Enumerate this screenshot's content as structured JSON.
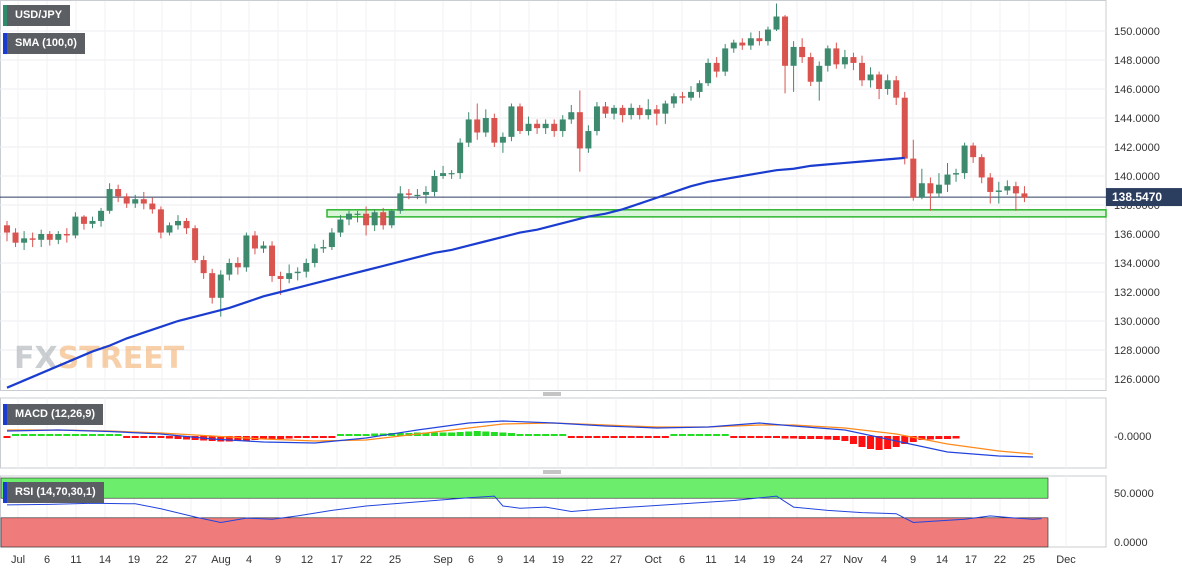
{
  "chart_data": {
    "type": "candlestick",
    "symbol": "USD/JPY",
    "sma_label": "SMA (100,0)",
    "macd_label": "MACD (12,26,9)",
    "rsi_label": "RSI (14,70,30,1)",
    "last_price": "138.5470",
    "watermark": {
      "fx": "FX",
      "street": "STREET"
    },
    "y_ticks": [
      "150.0000",
      "148.0000",
      "146.0000",
      "144.0000",
      "142.0000",
      "140.0000",
      "138.0000",
      "136.0000",
      "134.0000",
      "132.0000",
      "130.0000",
      "128.0000",
      "126.0000"
    ],
    "ylim": [
      125,
      152
    ],
    "macd_tick": "-0.0000",
    "rsi_ticks": [
      "50.0000",
      "0.0000"
    ],
    "x_labels": [
      "Jul",
      "6",
      "11",
      "14",
      "19",
      "22",
      "27",
      "Aug",
      "4",
      "9",
      "12",
      "17",
      "22",
      "25",
      "Sep",
      "6",
      "9",
      "14",
      "19",
      "22",
      "27",
      "Oct",
      "6",
      "11",
      "14",
      "19",
      "24",
      "27",
      "Nov",
      "4",
      "9",
      "14",
      "17",
      "22",
      "25",
      "Dec"
    ],
    "support_zone": [
      137.25,
      137.6
    ],
    "candles": [
      [
        136.6,
        136.1,
        135.5,
        136.9
      ],
      [
        136.1,
        135.4,
        135.1,
        136.4
      ],
      [
        135.4,
        135.7,
        134.9,
        136.2
      ],
      [
        135.7,
        135.6,
        135.1,
        136.1
      ],
      [
        135.6,
        136.0,
        135.1,
        136.3
      ],
      [
        136.0,
        135.6,
        135.2,
        136.2
      ],
      [
        135.6,
        136.0,
        135.3,
        136.2
      ],
      [
        136.0,
        135.9,
        135.4,
        136.4
      ],
      [
        135.9,
        137.2,
        135.7,
        137.5
      ],
      [
        137.2,
        136.7,
        136.3,
        137.3
      ],
      [
        136.7,
        136.9,
        136.4,
        137.2
      ],
      [
        136.9,
        137.6,
        136.5,
        137.8
      ],
      [
        137.6,
        139.1,
        137.4,
        139.5
      ],
      [
        139.1,
        138.6,
        138.2,
        139.4
      ],
      [
        138.6,
        138.1,
        137.8,
        138.8
      ],
      [
        138.1,
        138.4,
        137.8,
        138.7
      ],
      [
        138.4,
        138.1,
        137.7,
        138.9
      ],
      [
        138.1,
        137.7,
        137.4,
        138.5
      ],
      [
        137.7,
        136.1,
        135.7,
        137.9
      ],
      [
        136.1,
        136.6,
        135.9,
        136.8
      ],
      [
        136.6,
        136.9,
        136.3,
        137.3
      ],
      [
        136.9,
        136.4,
        136.0,
        137.1
      ],
      [
        136.4,
        134.2,
        134.0,
        136.6
      ],
      [
        134.2,
        133.3,
        132.9,
        134.5
      ],
      [
        133.3,
        131.6,
        131.2,
        133.6
      ],
      [
        131.6,
        133.2,
        130.3,
        133.5
      ],
      [
        133.2,
        134.0,
        132.8,
        134.3
      ],
      [
        134.0,
        133.7,
        133.2,
        134.4
      ],
      [
        133.7,
        135.9,
        133.4,
        136.1
      ],
      [
        135.9,
        135.0,
        134.6,
        136.2
      ],
      [
        135.0,
        135.2,
        134.7,
        135.5
      ],
      [
        135.2,
        133.1,
        132.7,
        135.5
      ],
      [
        133.1,
        132.9,
        131.8,
        133.4
      ],
      [
        132.9,
        133.3,
        132.6,
        133.9
      ],
      [
        133.3,
        133.4,
        132.8,
        133.7
      ],
      [
        133.4,
        134.0,
        133.0,
        134.3
      ],
      [
        134.0,
        135.0,
        133.7,
        135.3
      ],
      [
        135.0,
        135.1,
        134.7,
        135.6
      ],
      [
        135.1,
        136.1,
        134.9,
        136.4
      ],
      [
        136.1,
        137.0,
        135.8,
        137.3
      ],
      [
        137.0,
        137.4,
        136.6,
        137.6
      ],
      [
        137.4,
        137.4,
        136.8,
        137.6
      ],
      [
        137.4,
        136.6,
        135.9,
        137.9
      ],
      [
        136.6,
        137.5,
        136.2,
        137.7
      ],
      [
        137.5,
        136.6,
        136.3,
        137.8
      ],
      [
        136.6,
        137.6,
        136.4,
        137.7
      ],
      [
        137.6,
        138.8,
        137.4,
        139.3
      ],
      [
        138.8,
        138.7,
        138.4,
        139.1
      ],
      [
        138.7,
        138.7,
        138.4,
        139.1
      ],
      [
        138.7,
        138.9,
        138.1,
        139.3
      ],
      [
        138.9,
        140.0,
        138.6,
        140.4
      ],
      [
        140.0,
        140.2,
        139.8,
        140.7
      ],
      [
        140.2,
        140.2,
        139.8,
        140.4
      ],
      [
        140.2,
        142.3,
        139.8,
        142.6
      ],
      [
        142.3,
        143.9,
        142.0,
        144.4
      ],
      [
        143.9,
        143.0,
        142.5,
        145.0
      ],
      [
        143.0,
        144.0,
        142.7,
        144.6
      ],
      [
        144.0,
        142.3,
        142.0,
        144.3
      ],
      [
        142.3,
        142.7,
        141.6,
        143.0
      ],
      [
        142.7,
        144.8,
        142.4,
        145.0
      ],
      [
        144.8,
        143.1,
        142.9,
        145.0
      ],
      [
        143.1,
        143.6,
        142.8,
        144.1
      ],
      [
        143.6,
        143.3,
        142.9,
        143.9
      ],
      [
        143.3,
        143.6,
        142.9,
        143.9
      ],
      [
        143.6,
        143.1,
        142.7,
        143.9
      ],
      [
        143.1,
        143.9,
        142.7,
        144.2
      ],
      [
        143.9,
        144.4,
        143.6,
        144.9
      ],
      [
        144.4,
        141.9,
        140.3,
        145.9
      ],
      [
        141.9,
        143.1,
        141.6,
        143.5
      ],
      [
        143.1,
        144.8,
        142.8,
        145.1
      ],
      [
        144.8,
        144.3,
        144.0,
        145.1
      ],
      [
        144.3,
        144.7,
        143.9,
        144.9
      ],
      [
        144.7,
        144.2,
        143.7,
        144.9
      ],
      [
        144.2,
        144.7,
        143.9,
        145.0
      ],
      [
        144.7,
        144.2,
        143.9,
        144.9
      ],
      [
        144.2,
        144.6,
        143.9,
        145.3
      ],
      [
        144.6,
        144.3,
        143.5,
        144.9
      ],
      [
        144.3,
        145.0,
        143.6,
        145.2
      ],
      [
        145.0,
        145.5,
        144.7,
        145.7
      ],
      [
        145.5,
        145.4,
        145.0,
        145.8
      ],
      [
        145.4,
        145.8,
        145.2,
        146.2
      ],
      [
        145.8,
        146.4,
        145.4,
        146.6
      ],
      [
        146.4,
        147.8,
        146.2,
        148.1
      ],
      [
        147.8,
        147.2,
        146.8,
        148.2
      ],
      [
        147.2,
        148.8,
        146.9,
        149.1
      ],
      [
        148.8,
        149.2,
        148.5,
        149.4
      ],
      [
        149.2,
        149.0,
        148.7,
        149.5
      ],
      [
        149.0,
        149.5,
        148.7,
        149.9
      ],
      [
        149.5,
        149.3,
        149.0,
        150.0
      ],
      [
        149.3,
        150.1,
        149.0,
        150.3
      ],
      [
        150.1,
        151.0,
        150.0,
        151.9
      ],
      [
        151.0,
        147.6,
        145.7,
        151.1
      ],
      [
        147.6,
        148.9,
        145.8,
        149.3
      ],
      [
        148.9,
        148.2,
        147.8,
        149.5
      ],
      [
        148.2,
        146.5,
        146.2,
        148.5
      ],
      [
        146.5,
        147.6,
        145.2,
        147.9
      ],
      [
        147.6,
        148.8,
        147.2,
        149.0
      ],
      [
        148.8,
        147.7,
        147.4,
        149.2
      ],
      [
        147.7,
        148.2,
        147.4,
        148.7
      ],
      [
        148.2,
        147.8,
        147.3,
        148.5
      ],
      [
        147.8,
        146.6,
        146.2,
        148.3
      ],
      [
        146.6,
        147.0,
        146.1,
        147.5
      ],
      [
        147.0,
        146.0,
        145.3,
        147.2
      ],
      [
        146.0,
        146.6,
        145.6,
        147.0
      ],
      [
        146.6,
        145.4,
        144.9,
        146.9
      ],
      [
        145.4,
        141.2,
        140.8,
        145.8
      ],
      [
        141.2,
        138.5,
        138.3,
        142.5
      ],
      [
        138.5,
        139.5,
        138.4,
        140.5
      ],
      [
        139.5,
        138.8,
        137.6,
        139.9
      ],
      [
        138.8,
        139.4,
        138.5,
        140.2
      ],
      [
        139.4,
        140.1,
        138.9,
        140.9
      ],
      [
        140.1,
        140.2,
        139.6,
        140.5
      ],
      [
        140.2,
        142.1,
        139.8,
        142.3
      ],
      [
        142.1,
        141.3,
        140.9,
        142.3
      ],
      [
        141.3,
        139.9,
        139.5,
        141.5
      ],
      [
        139.9,
        138.9,
        138.1,
        140.2
      ],
      [
        138.9,
        139.0,
        138.1,
        139.6
      ],
      [
        139.0,
        139.3,
        138.7,
        139.7
      ],
      [
        139.3,
        138.8,
        137.6,
        139.6
      ],
      [
        138.8,
        138.5,
        138.2,
        139.3
      ]
    ],
    "sma_100": [
      [
        0,
        125.4
      ],
      [
        2,
        125.9
      ],
      [
        4,
        126.4
      ],
      [
        6,
        126.9
      ],
      [
        8,
        127.4
      ],
      [
        10,
        127.9
      ],
      [
        12,
        128.3
      ],
      [
        14,
        128.8
      ],
      [
        16,
        129.2
      ],
      [
        18,
        129.6
      ],
      [
        20,
        130.0
      ],
      [
        22,
        130.3
      ],
      [
        24,
        130.6
      ],
      [
        26,
        130.9
      ],
      [
        28,
        131.3
      ],
      [
        30,
        131.7
      ],
      [
        32,
        132.0
      ],
      [
        34,
        132.3
      ],
      [
        36,
        132.6
      ],
      [
        38,
        132.9
      ],
      [
        40,
        133.2
      ],
      [
        42,
        133.5
      ],
      [
        44,
        133.8
      ],
      [
        46,
        134.1
      ],
      [
        48,
        134.4
      ],
      [
        50,
        134.7
      ],
      [
        52,
        134.9
      ],
      [
        54,
        135.2
      ],
      [
        56,
        135.5
      ],
      [
        58,
        135.8
      ],
      [
        60,
        136.1
      ],
      [
        62,
        136.3
      ],
      [
        64,
        136.6
      ],
      [
        66,
        136.9
      ],
      [
        68,
        137.2
      ],
      [
        70,
        137.4
      ],
      [
        72,
        137.7
      ],
      [
        74,
        138.1
      ],
      [
        76,
        138.5
      ],
      [
        78,
        138.9
      ],
      [
        80,
        139.3
      ],
      [
        82,
        139.6
      ],
      [
        84,
        139.8
      ],
      [
        86,
        140.0
      ],
      [
        88,
        140.2
      ],
      [
        90,
        140.4
      ],
      [
        92,
        140.5
      ],
      [
        94,
        140.7
      ],
      [
        96,
        140.8
      ],
      [
        98,
        140.9
      ],
      [
        100,
        141.0
      ],
      [
        102,
        141.1
      ],
      [
        104,
        141.2
      ],
      [
        105,
        141.25
      ]
    ],
    "macd_line": [
      [
        0,
        0.5
      ],
      [
        6,
        0.6
      ],
      [
        12,
        0.45
      ],
      [
        18,
        0.2
      ],
      [
        24,
        -0.3
      ],
      [
        30,
        -0.6
      ],
      [
        36,
        -0.7
      ],
      [
        42,
        -0.2
      ],
      [
        48,
        0.6
      ],
      [
        54,
        1.3
      ],
      [
        58,
        1.5
      ],
      [
        64,
        1.3
      ],
      [
        70,
        1.0
      ],
      [
        76,
        0.8
      ],
      [
        82,
        0.9
      ],
      [
        88,
        1.3
      ],
      [
        92,
        1.0
      ],
      [
        98,
        0.6
      ],
      [
        104,
        -0.5
      ],
      [
        110,
        -1.6
      ],
      [
        116,
        -2.0
      ],
      [
        120,
        -2.1
      ]
    ],
    "signal_line": [
      [
        0,
        0.6
      ],
      [
        6,
        0.6
      ],
      [
        12,
        0.5
      ],
      [
        18,
        0.3
      ],
      [
        24,
        0.0
      ],
      [
        30,
        -0.3
      ],
      [
        36,
        -0.5
      ],
      [
        42,
        -0.4
      ],
      [
        48,
        0.2
      ],
      [
        54,
        0.8
      ],
      [
        58,
        1.2
      ],
      [
        64,
        1.3
      ],
      [
        70,
        1.1
      ],
      [
        76,
        0.9
      ],
      [
        82,
        0.9
      ],
      [
        88,
        1.1
      ],
      [
        92,
        1.1
      ],
      [
        98,
        0.8
      ],
      [
        104,
        0.2
      ],
      [
        110,
        -0.8
      ],
      [
        116,
        -1.5
      ],
      [
        120,
        -1.8
      ]
    ],
    "macd_hist": [
      -0.1,
      0.0,
      0.0,
      0.0,
      0.0,
      0.0,
      0.0,
      0.0,
      0.0,
      0.0,
      0.0,
      0.0,
      0.0,
      0.0,
      -0.05,
      -0.05,
      -0.1,
      -0.12,
      -0.2,
      -0.25,
      -0.3,
      -0.35,
      -0.4,
      -0.45,
      -0.5,
      -0.55,
      -0.55,
      -0.5,
      -0.45,
      -0.4,
      -0.35,
      -0.35,
      -0.3,
      -0.25,
      -0.2,
      -0.2,
      -0.15,
      -0.1,
      -0.05,
      0.05,
      0.1,
      0.15,
      0.2,
      0.25,
      0.25,
      0.3,
      0.3,
      0.3,
      0.35,
      0.35,
      0.35,
      0.35,
      0.35,
      0.4,
      0.45,
      0.5,
      0.45,
      0.4,
      0.35,
      0.3,
      0.2,
      0.15,
      0.1,
      0.05,
      0.0,
      0.0,
      -0.05,
      -0.05,
      -0.1,
      -0.1,
      -0.1,
      -0.1,
      -0.1,
      -0.1,
      -0.1,
      -0.1,
      -0.05,
      -0.05,
      0.05,
      0.1,
      0.15,
      0.15,
      0.15,
      0.1,
      0.05,
      -0.05,
      -0.1,
      -0.15,
      -0.2,
      -0.2,
      -0.2,
      -0.25,
      -0.25,
      -0.3,
      -0.3,
      -0.3,
      -0.35,
      -0.4,
      -0.5,
      -0.8,
      -1.1,
      -1.3,
      -1.4,
      -1.3,
      -1.1,
      -0.8,
      -0.6,
      -0.4,
      -0.35,
      -0.3,
      -0.3,
      -0.25
    ],
    "rsi": [
      [
        0,
        62
      ],
      [
        5,
        63
      ],
      [
        10,
        65
      ],
      [
        15,
        64
      ],
      [
        18,
        55
      ],
      [
        22,
        40
      ],
      [
        25,
        30
      ],
      [
        28,
        38
      ],
      [
        31,
        36
      ],
      [
        34,
        42
      ],
      [
        38,
        52
      ],
      [
        42,
        60
      ],
      [
        46,
        65
      ],
      [
        50,
        70
      ],
      [
        54,
        75
      ],
      [
        57,
        78
      ],
      [
        58,
        60
      ],
      [
        60,
        56
      ],
      [
        63,
        58
      ],
      [
        66,
        50
      ],
      [
        70,
        55
      ],
      [
        75,
        60
      ],
      [
        80,
        65
      ],
      [
        85,
        70
      ],
      [
        90,
        78
      ],
      [
        92,
        58
      ],
      [
        96,
        52
      ],
      [
        100,
        48
      ],
      [
        104,
        46
      ],
      [
        106,
        30
      ],
      [
        108,
        32
      ],
      [
        112,
        36
      ],
      [
        115,
        42
      ],
      [
        118,
        38
      ],
      [
        120,
        36
      ],
      [
        121,
        37
      ]
    ],
    "rsi_levels": {
      "overbought": 70,
      "oversold": 30
    }
  },
  "colors": {
    "up": "#3d8a6e",
    "down": "#d9534f",
    "sma": "#1a3ccf",
    "macd": "#2244dd",
    "signal": "#ff8a1a",
    "hist_up": "#22dd22",
    "hist_down": "#ff1111",
    "rsi": "#2244dd",
    "ob_zone": "#6cee6c",
    "os_zone": "#ef7b7b",
    "support": "#2fb52f"
  }
}
